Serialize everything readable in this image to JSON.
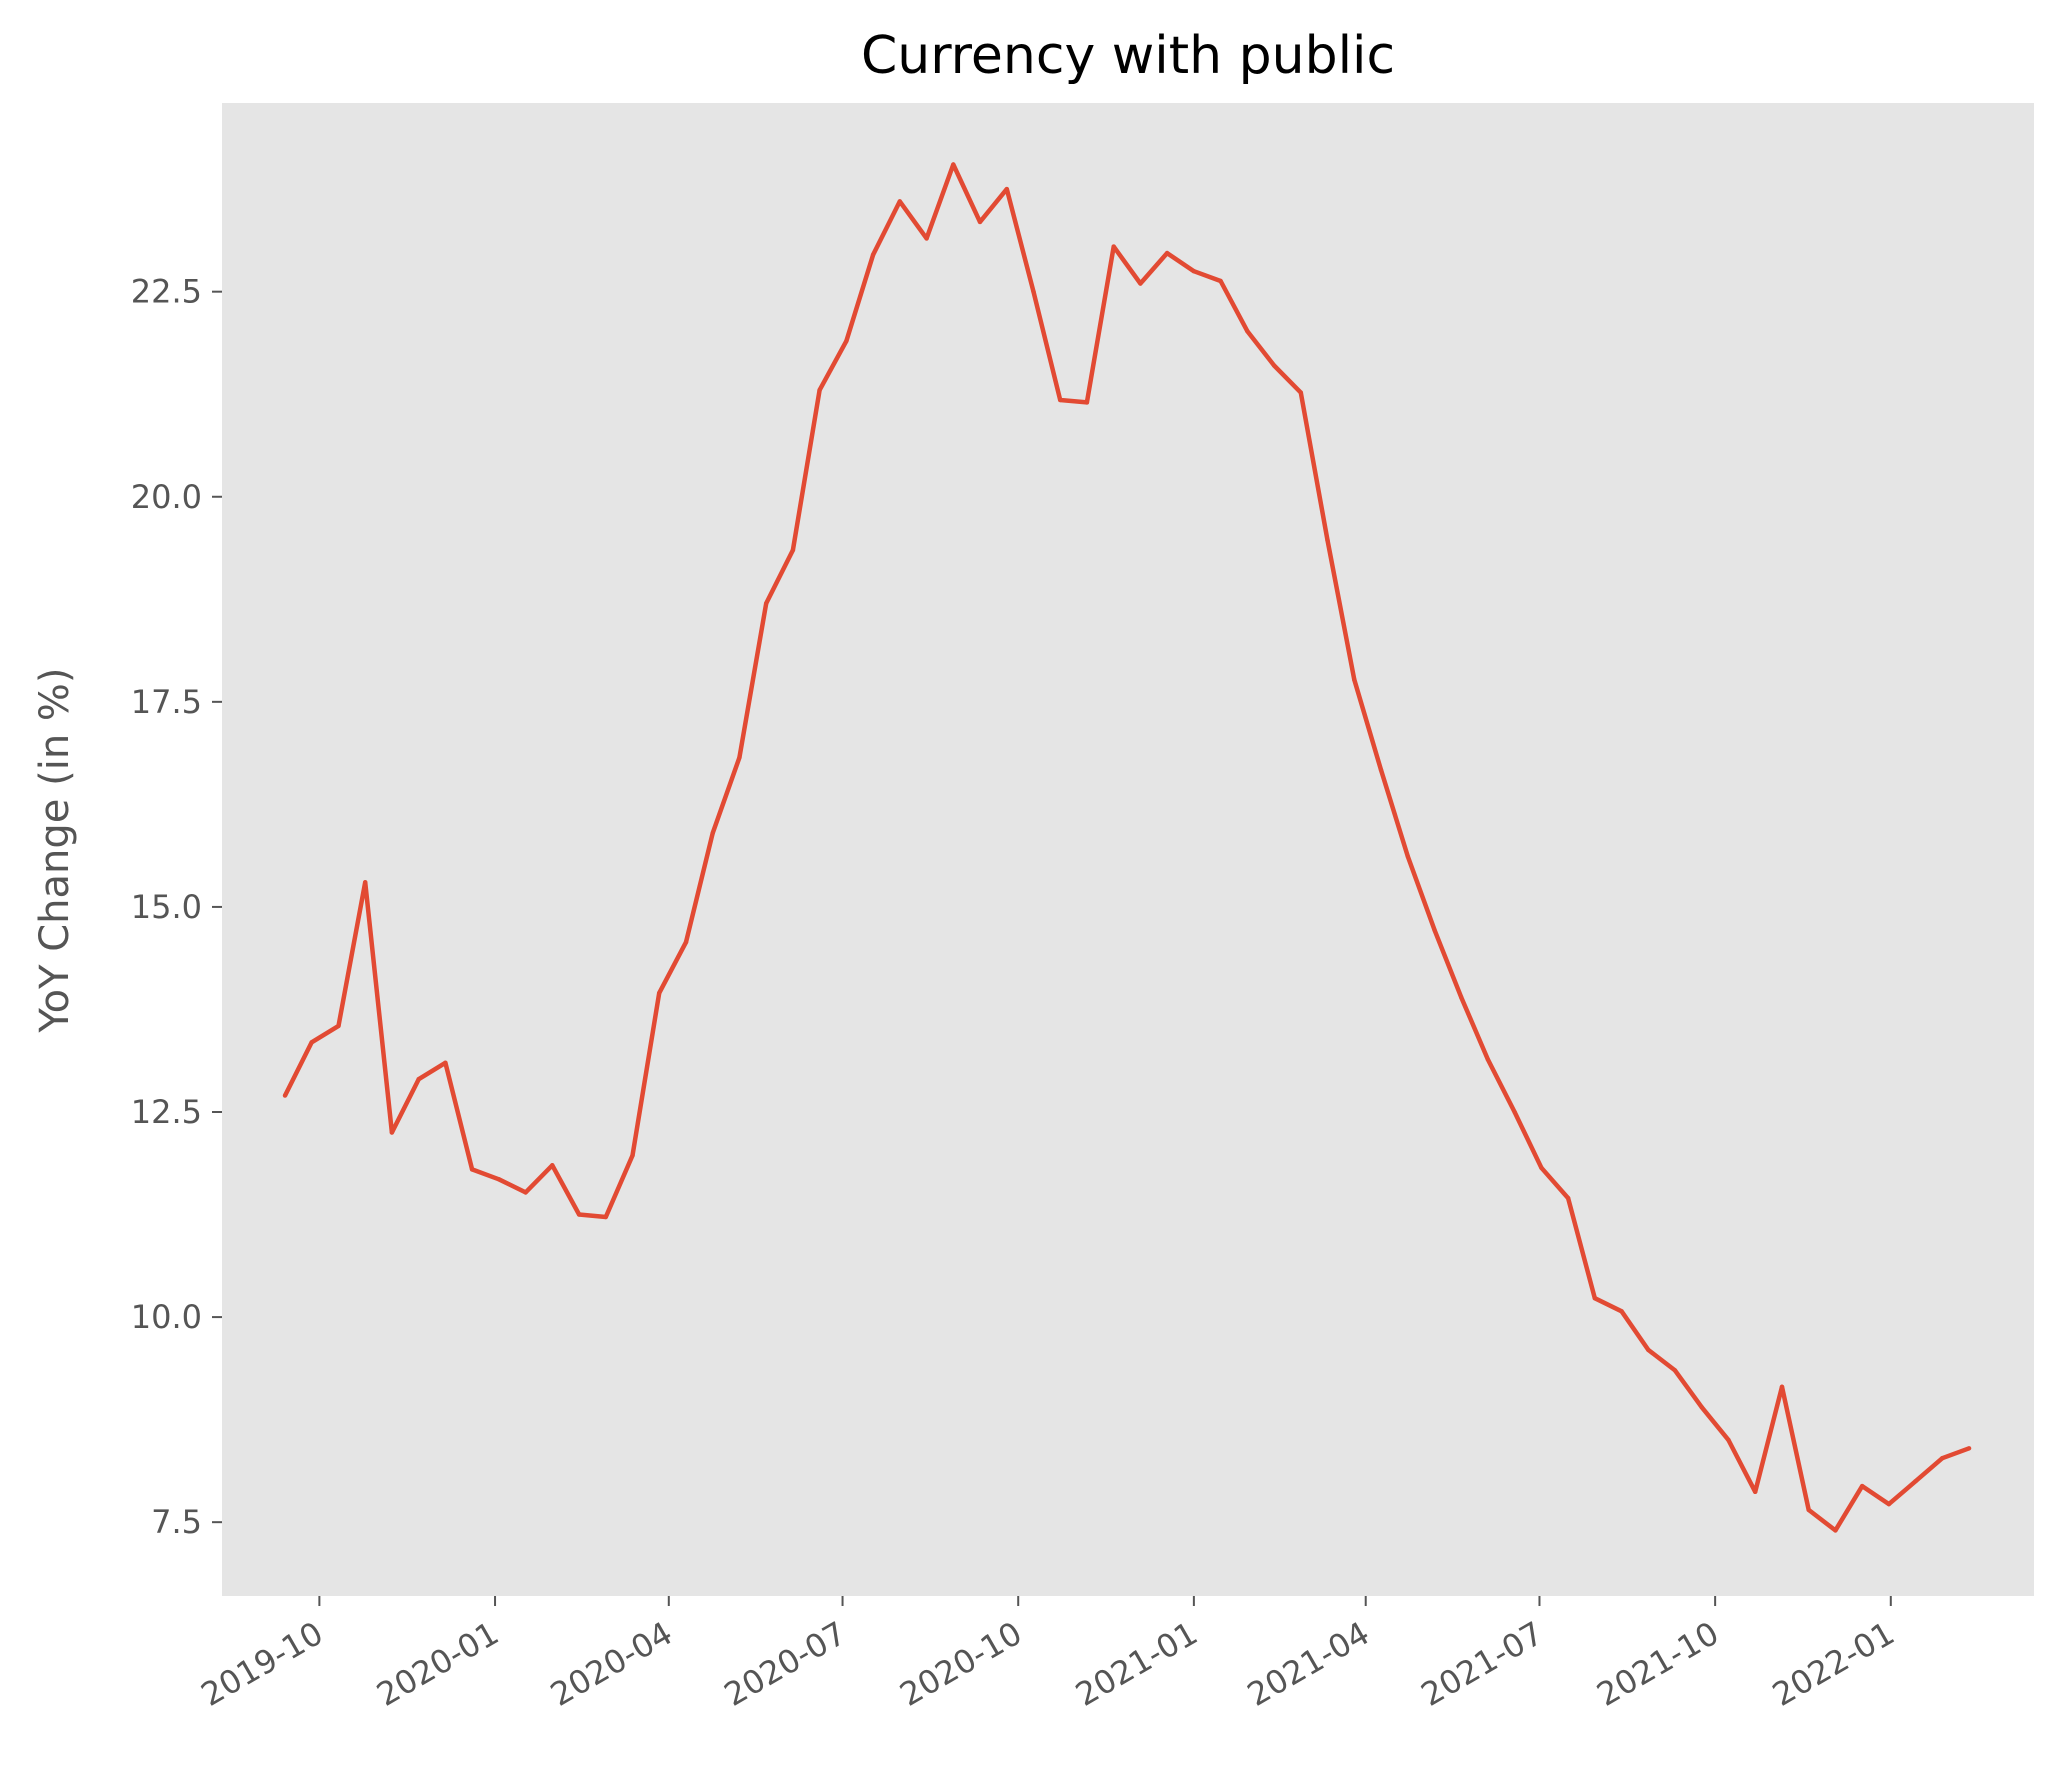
{
  "colors": {
    "plot_background": "#e5e5e5",
    "line": "#e24a33",
    "tick_text": "#555555",
    "title_text": "#000000"
  },
  "chart_data": {
    "type": "line",
    "title": "Currency with public",
    "xlabel": "",
    "ylabel": "YoY Change (in %)",
    "grid": false,
    "xlim": [
      "2019-08-11",
      "2022-03-17"
    ],
    "ylim": [
      6.6,
      24.8
    ],
    "x_ticks": [
      "2019-10-01",
      "2020-01-01",
      "2020-04-01",
      "2020-07-01",
      "2020-10-01",
      "2021-01-01",
      "2021-04-01",
      "2021-07-01",
      "2021-10-01",
      "2022-01-01"
    ],
    "x_tick_labels": [
      "2019-10",
      "2020-01",
      "2020-04",
      "2020-07",
      "2020-10",
      "2021-01",
      "2021-04",
      "2021-07",
      "2021-10",
      "2022-01"
    ],
    "y_ticks": [
      7.5,
      10.0,
      12.5,
      15.0,
      17.5,
      20.0,
      22.5
    ],
    "y_tick_labels": [
      "7.5",
      "10.0",
      "12.5",
      "15.0",
      "17.5",
      "20.0",
      "22.5"
    ],
    "series": [
      {
        "color": "#e24a33",
        "x": [
          "2019-09-13",
          "2019-09-27",
          "2019-10-11",
          "2019-10-25",
          "2019-11-08",
          "2019-11-22",
          "2019-12-06",
          "2019-12-20",
          "2020-01-03",
          "2020-01-17",
          "2020-01-31",
          "2020-02-14",
          "2020-02-28",
          "2020-03-13",
          "2020-03-27",
          "2020-04-10",
          "2020-04-24",
          "2020-05-08",
          "2020-05-22",
          "2020-06-05",
          "2020-06-19",
          "2020-07-03",
          "2020-07-17",
          "2020-07-31",
          "2020-08-14",
          "2020-08-28",
          "2020-09-11",
          "2020-09-25",
          "2020-10-09",
          "2020-10-23",
          "2020-11-06",
          "2020-11-20",
          "2020-12-04",
          "2020-12-18",
          "2021-01-01",
          "2021-01-15",
          "2021-01-29",
          "2021-02-12",
          "2021-02-26",
          "2021-03-12",
          "2021-03-26",
          "2021-04-09",
          "2021-04-23",
          "2021-05-07",
          "2021-05-21",
          "2021-06-04",
          "2021-06-18",
          "2021-07-02",
          "2021-07-16",
          "2021-07-30",
          "2021-08-13",
          "2021-08-27",
          "2021-09-10",
          "2021-09-24",
          "2021-10-08",
          "2021-10-22",
          "2021-11-05",
          "2021-11-19",
          "2021-12-03",
          "2021-12-17",
          "2021-12-31",
          "2022-01-14",
          "2022-01-28",
          "2022-02-11",
          "2022-02-25"
        ],
        "y": [
          12.7,
          13.35,
          13.55,
          15.3,
          12.25,
          12.9,
          13.1,
          11.8,
          11.68,
          11.52,
          11.85,
          11.25,
          11.22,
          11.97,
          13.95,
          14.57,
          15.9,
          16.82,
          18.7,
          19.35,
          21.3,
          21.9,
          22.95,
          23.6,
          23.15,
          24.05,
          23.35,
          23.75,
          22.5,
          21.18,
          21.15,
          23.05,
          22.6,
          22.97,
          22.75,
          22.63,
          22.02,
          21.6,
          21.27,
          19.47,
          17.77,
          16.67,
          15.62,
          14.72,
          13.9,
          13.14,
          12.5,
          11.82,
          11.45,
          10.23,
          10.07,
          9.6,
          9.35,
          8.9,
          8.5,
          7.87,
          9.15,
          7.65,
          7.4,
          7.94,
          7.72,
          8.0,
          8.28,
          8.4,
          null
        ]
      }
    ]
  }
}
